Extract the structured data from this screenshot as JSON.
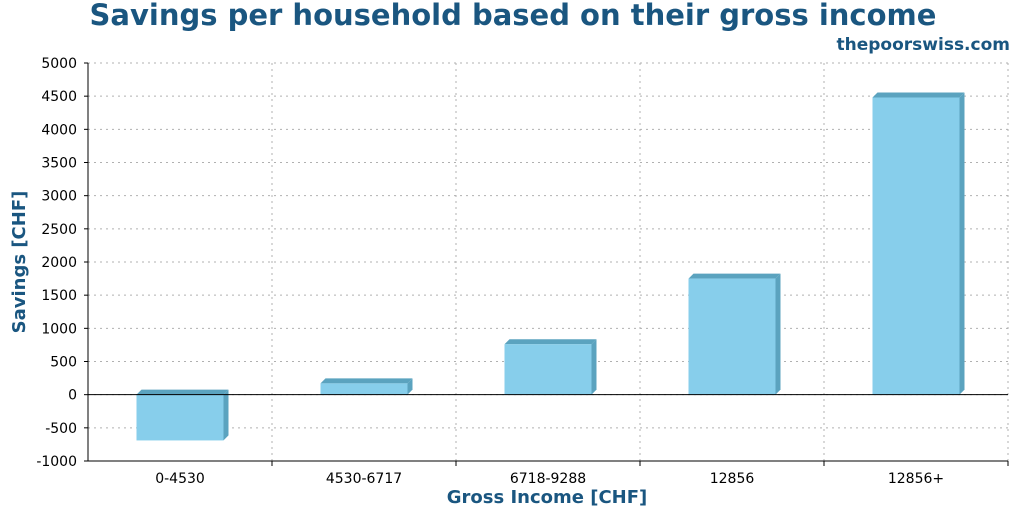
{
  "chart_data": {
    "type": "bar",
    "title": "Savings per household based on their gross income",
    "source": "thepoorswiss.com",
    "xlabel": "Gross Income [CHF]",
    "ylabel": "Savings [CHF]",
    "categories": [
      "0-4530",
      "4530-6717",
      "6718-9288",
      "12856",
      "12856+"
    ],
    "values": [
      -690,
      170,
      760,
      1750,
      4480
    ],
    "ylim": [
      -1000,
      5000
    ],
    "yticks": [
      -1000,
      -500,
      0,
      500,
      1000,
      1500,
      2000,
      2500,
      3000,
      3500,
      4000,
      4500,
      5000
    ],
    "grid": true,
    "colors": {
      "bar_front": "#87ceeb",
      "bar_side": "#5ba3bf",
      "accent": "#1a5680"
    }
  }
}
